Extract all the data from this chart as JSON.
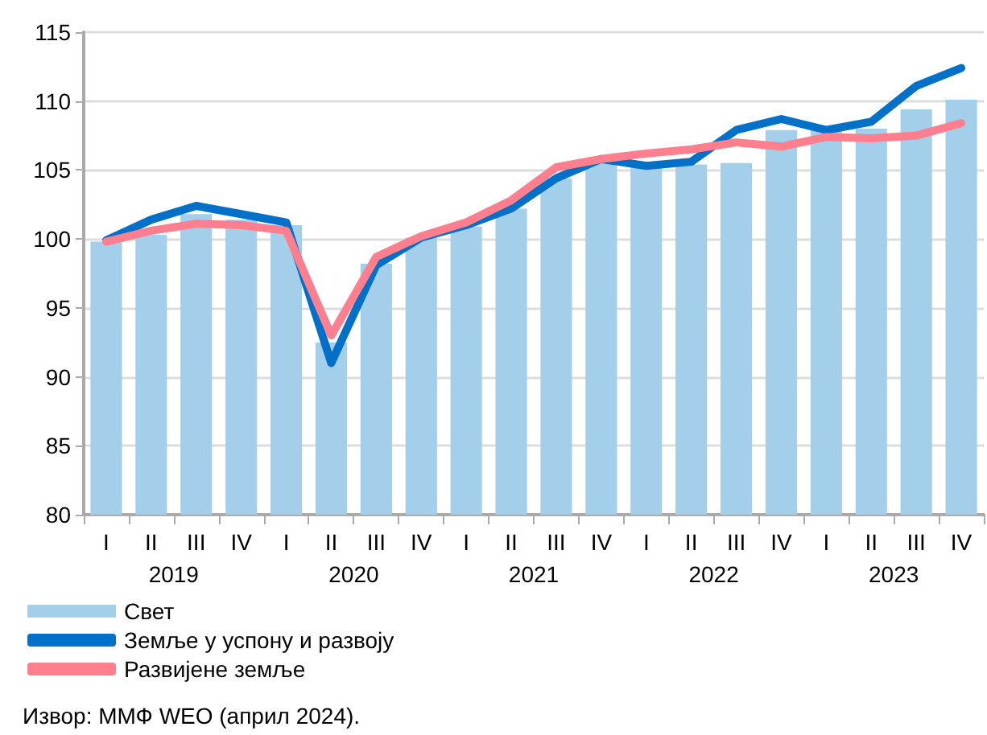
{
  "chart_data": {
    "type": "bar",
    "categories": [
      "I",
      "II",
      "III",
      "IV",
      "I",
      "II",
      "III",
      "IV",
      "I",
      "II",
      "III",
      "IV",
      "I",
      "II",
      "III",
      "IV",
      "I",
      "II",
      "III",
      "IV"
    ],
    "series": [
      {
        "name": "Свет",
        "color": "#a3cfea",
        "values": [
          99.8,
          100.3,
          101.8,
          101.4,
          101.0,
          92.5,
          98.2,
          100.1,
          100.9,
          102.2,
          104.4,
          105.8,
          105.6,
          105.4,
          105.5,
          107.9,
          107.9,
          108.0,
          109.4,
          110.1
        ]
      },
      {
        "name": "Земље у успону и развоју",
        "type": "line",
        "color": "#0070c8",
        "values": [
          99.9,
          101.4,
          102.4,
          101.8,
          101.2,
          91.0,
          98.1,
          100.1,
          101.0,
          102.2,
          104.4,
          105.8,
          105.3,
          105.6,
          107.9,
          108.7,
          107.9,
          108.5,
          111.1,
          112.4
        ]
      },
      {
        "name": "Развијене земље",
        "type": "line",
        "color": "#ff7f8f",
        "values": [
          99.8,
          100.6,
          101.1,
          101.0,
          100.6,
          93.0,
          98.7,
          100.2,
          101.2,
          102.8,
          105.2,
          105.8,
          106.2,
          106.5,
          107.0,
          106.7,
          107.4,
          107.3,
          107.5,
          108.4
        ]
      }
    ],
    "ylim": [
      80,
      115
    ],
    "yticks": [
      80,
      85,
      90,
      95,
      100,
      105,
      110,
      115
    ],
    "grid": "y",
    "legend": "bottom left",
    "marker": "none",
    "line_style": "solid",
    "annotations": [
      "2019",
      "2020",
      "2021",
      "2022",
      "2023",
      "Извор: ММФ WEO (април 2024)."
    ]
  }
}
